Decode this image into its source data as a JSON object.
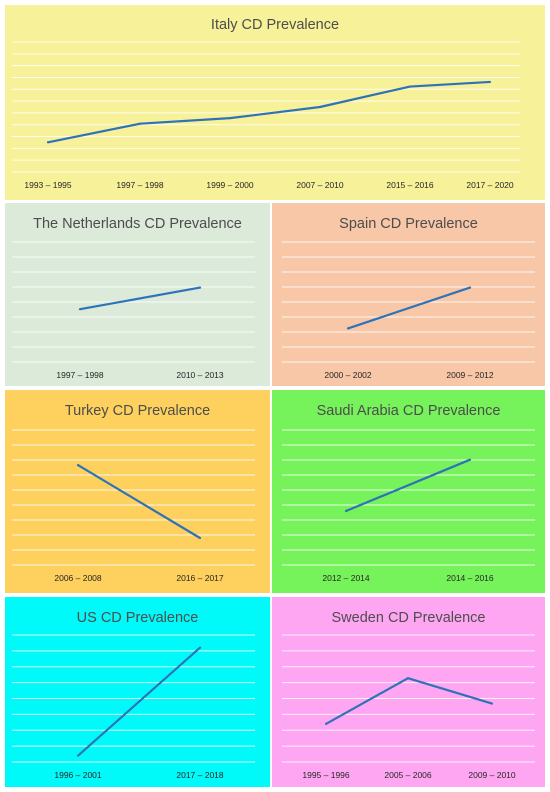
{
  "chart_data": [
    {
      "id": "italy",
      "type": "line",
      "title": "Italy CD Prevalence",
      "categories": [
        "1993 – 1995",
        "1997 – 1998",
        "1999 – 2000",
        "2007 – 2010",
        "2015 – 2016",
        "2017 – 2020"
      ],
      "values": [
        0.6,
        1.6,
        1.9,
        2.5,
        3.6,
        3.85
      ],
      "ylim": [
        -1,
        6
      ],
      "grid": true,
      "background": "#f7f199",
      "line_color": "#2e73b8"
    },
    {
      "id": "netherlands",
      "type": "line",
      "title": "The Netherlands CD Prevalence",
      "categories": [
        "1997 – 1998",
        "2010 – 2013"
      ],
      "values": [
        2.2,
        3.1
      ],
      "ylim": [
        0,
        5
      ],
      "grid": true,
      "background": "#dbead9",
      "line_color": "#2e73b8"
    },
    {
      "id": "spain",
      "type": "line",
      "title": "Spain CD Prevalence",
      "categories": [
        "2000 – 2002",
        "2009 – 2012"
      ],
      "values": [
        1.4,
        3.1
      ],
      "ylim": [
        0,
        5
      ],
      "grid": true,
      "background": "#f8c7a7",
      "line_color": "#2e73b8"
    },
    {
      "id": "turkey",
      "type": "line",
      "title": "Turkey CD Prevalence",
      "categories": [
        "2006 – 2008",
        "2016 – 2017"
      ],
      "values": [
        3.7,
        1.0
      ],
      "ylim": [
        0,
        5
      ],
      "grid": true,
      "background": "#fed05d",
      "line_color": "#2e73b8"
    },
    {
      "id": "saudi",
      "type": "line",
      "title": "Saudi Arabia CD Prevalence",
      "categories": [
        "2012 – 2014",
        "2014 – 2016"
      ],
      "values": [
        2.0,
        3.9
      ],
      "ylim": [
        0,
        5
      ],
      "grid": true,
      "background": "#76f25a",
      "line_color": "#2e73b8"
    },
    {
      "id": "us",
      "type": "line",
      "title": "US CD Prevalence",
      "categories": [
        "1996 – 2001",
        "2017 – 2018"
      ],
      "values": [
        0.2,
        3.6
      ],
      "ylim": [
        0,
        4
      ],
      "grid": true,
      "background": "#00fafa",
      "line_color": "#2e73b8"
    },
    {
      "id": "sweden",
      "type": "line",
      "title": "Sweden CD Prevalence",
      "categories": [
        "1995 – 1996",
        "2005 – 2006",
        "2009 – 2010"
      ],
      "values": [
        1.5,
        3.3,
        2.3
      ],
      "ylim": [
        0,
        5
      ],
      "grid": true,
      "background": "#ffa6f3",
      "line_color": "#2e73b8"
    }
  ]
}
